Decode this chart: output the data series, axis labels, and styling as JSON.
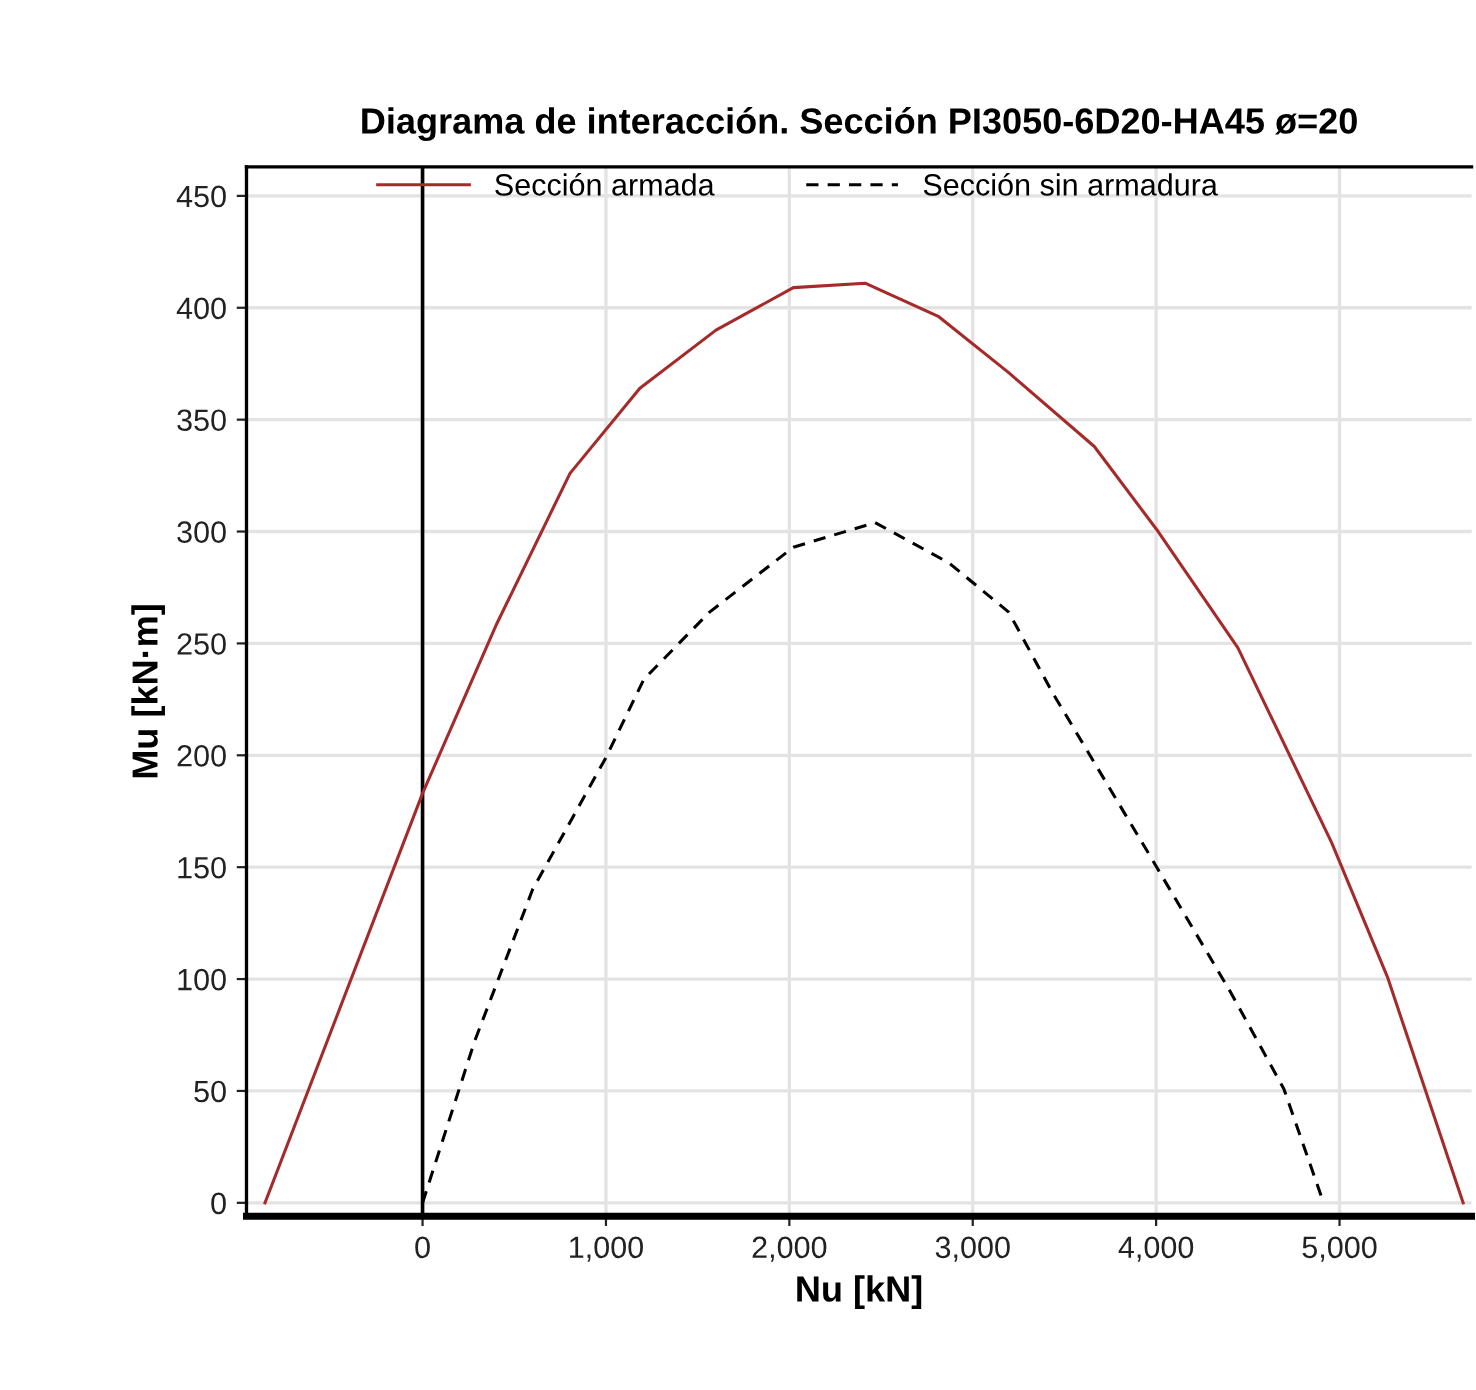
{
  "chart_data": {
    "type": "line",
    "title": "Diagrama de interacción. Sección PI3050-6D20-HA45 ø=20",
    "xlabel": "Nu [kN]",
    "ylabel": "Mu [kN·m]",
    "xlim": [
      -960,
      5720
    ],
    "ylim": [
      -6,
      463
    ],
    "xticks": [
      {
        "value": 0,
        "label": "0"
      },
      {
        "value": 1000,
        "label": "1,000"
      },
      {
        "value": 2000,
        "label": "2,000"
      },
      {
        "value": 3000,
        "label": "3,000"
      },
      {
        "value": 4000,
        "label": "4,000"
      },
      {
        "value": 5000,
        "label": "5,000"
      }
    ],
    "yticks": [
      0,
      50,
      100,
      150,
      200,
      250,
      300,
      350,
      400,
      450
    ],
    "grid": true,
    "legend": "top",
    "marker": "none",
    "ref_lines": [
      {
        "axis": "x",
        "value": 0,
        "color": "#000000",
        "line_style": "solid"
      }
    ],
    "series": [
      {
        "name": "Sección armada",
        "color": "#a52a2a",
        "line_style": "solid",
        "x": [
          -859,
          0,
          400,
          804,
          1185,
          1600,
          2022,
          2413,
          2815,
          3196,
          3663,
          4011,
          4446,
          4957,
          5261,
          5674
        ],
        "values": [
          0,
          183,
          258,
          326,
          364,
          390,
          409,
          411,
          396,
          371,
          338,
          300,
          248,
          161,
          101,
          0
        ]
      },
      {
        "name": "Sección sin armadura",
        "color": "#000000",
        "line_style": "dashed",
        "x": [
          0,
          283,
          600,
          1000,
          1207,
          1565,
          2022,
          2467,
          2870,
          3196,
          3435,
          3967,
          4400,
          4696,
          4913
        ],
        "values": [
          0,
          72,
          140,
          199,
          234,
          264,
          293,
          304,
          286,
          264,
          228,
          155,
          95,
          51,
          0
        ]
      }
    ]
  }
}
